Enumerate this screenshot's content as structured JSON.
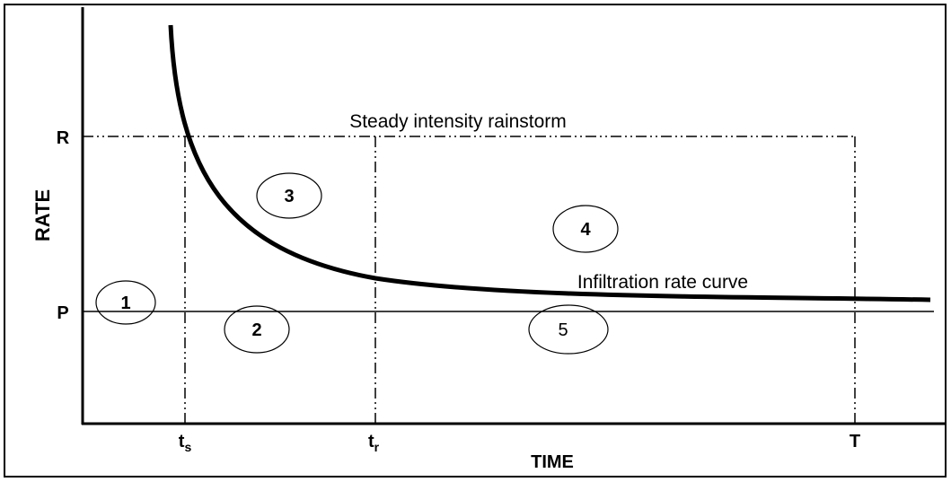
{
  "axes": {
    "y_label": "RATE",
    "x_label": "TIME",
    "y_marks": [
      "R",
      "P"
    ],
    "x_marks": [
      {
        "main": "t",
        "sub": "s"
      },
      {
        "main": "t",
        "sub": "r"
      },
      "T"
    ]
  },
  "annotations": {
    "rainstorm": "Steady intensity rainstorm",
    "infiltration": "Infiltration rate curve"
  },
  "regions": [
    "1",
    "2",
    "3",
    "4",
    "5"
  ]
}
